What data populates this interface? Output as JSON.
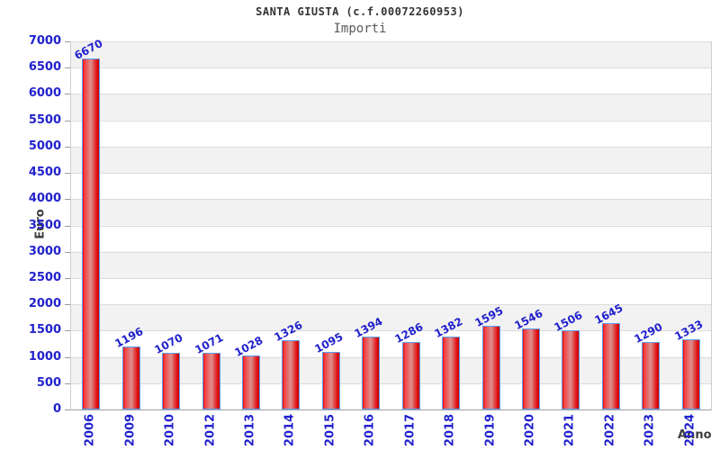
{
  "header": {
    "title": "SANTA GIUSTA (c.f.00072260953)",
    "subtitle": "Importi"
  },
  "chart_data": {
    "type": "bar",
    "title": "SANTA GIUSTA (c.f.00072260953)",
    "subtitle": "Importi",
    "xlabel": "Anno",
    "ylabel": "Euro",
    "categories": [
      "2006",
      "2009",
      "2010",
      "2012",
      "2013",
      "2014",
      "2015",
      "2016",
      "2017",
      "2018",
      "2019",
      "2020",
      "2021",
      "2022",
      "2023",
      "2024"
    ],
    "values": [
      6670,
      1196,
      1070,
      1071,
      1028,
      1326,
      1095,
      1394,
      1286,
      1382,
      1595,
      1546,
      1506,
      1645,
      1290,
      1333
    ],
    "ylim": [
      0,
      7000
    ],
    "ytick_step": 500,
    "yticks": [
      0,
      500,
      1000,
      1500,
      2000,
      2500,
      3000,
      3500,
      4000,
      4500,
      5000,
      5500,
      6000,
      6500,
      7000
    ],
    "grid": true,
    "legend_position": "none",
    "colors": {
      "bar_fill_main": "#e31212",
      "bar_fill_highlight": "#dd9090",
      "bar_border": "#5b9ff0",
      "axis_label_blue": "#2121cd",
      "band_gray": "#f3f2f2",
      "grid_line": "#dcdcdc",
      "title_color": "#333333"
    }
  }
}
